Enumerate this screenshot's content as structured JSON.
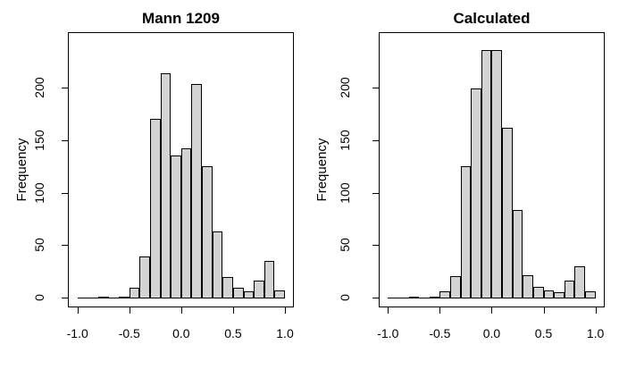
{
  "page": {
    "background": "#ffffff"
  },
  "chart_data": [
    {
      "type": "bar",
      "chart_kind": "histogram",
      "title": "Mann 1209",
      "xlabel": "",
      "ylabel": "Frequency",
      "bins": {
        "start": -1.0,
        "width": 0.1
      },
      "values": [
        0,
        0,
        1,
        0,
        2,
        10,
        40,
        171,
        214,
        136,
        143,
        204,
        126,
        64,
        20,
        10,
        7,
        17,
        36,
        8
      ],
      "x_tick_values": [
        -1.0,
        -0.5,
        0.0,
        0.5,
        1.0
      ],
      "x_tick_labels": [
        "-1.0",
        "-0.5",
        "0.0",
        "0.5",
        "1.0"
      ],
      "y_tick_values": [
        0,
        50,
        100,
        150,
        200
      ],
      "y_tick_labels": [
        "0",
        "50",
        "100",
        "150",
        "200"
      ],
      "xlim": [
        -1.05,
        1.05
      ],
      "ylim": [
        0,
        252
      ],
      "grid": false,
      "legend": false,
      "bar_fill": "#d3d3d3",
      "bar_stroke": "#000000"
    },
    {
      "type": "bar",
      "chart_kind": "histogram",
      "title": "Calculated",
      "xlabel": "",
      "ylabel": "Frequency",
      "bins": {
        "start": -1.0,
        "width": 0.1
      },
      "values": [
        0,
        0,
        1,
        0,
        2,
        7,
        21,
        126,
        200,
        236,
        236,
        162,
        84,
        22,
        11,
        8,
        6,
        17,
        31,
        7
      ],
      "x_tick_values": [
        -1.0,
        -0.5,
        0.0,
        0.5,
        1.0
      ],
      "x_tick_labels": [
        "-1.0",
        "-0.5",
        "0.0",
        "0.5",
        "1.0"
      ],
      "y_tick_values": [
        0,
        50,
        100,
        150,
        200
      ],
      "y_tick_labels": [
        "0",
        "50",
        "100",
        "150",
        "200"
      ],
      "xlim": [
        -1.05,
        1.05
      ],
      "ylim": [
        0,
        252
      ],
      "grid": false,
      "legend": false,
      "bar_fill": "#d3d3d3",
      "bar_stroke": "#000000"
    }
  ]
}
